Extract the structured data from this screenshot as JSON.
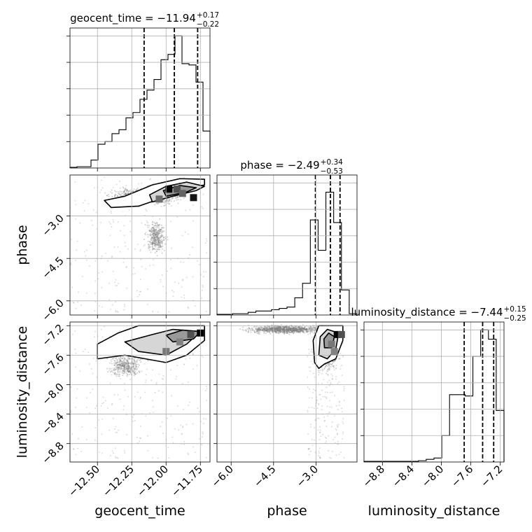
{
  "chart_data": {
    "type": "corner",
    "parameters": [
      {
        "key": "geocent_time",
        "label": "geocent_time",
        "title": "geocent_time = −11.94",
        "title_plus": "+0.17",
        "title_minus": "−0.22",
        "range": [
          -12.7,
          -11.68
        ],
        "ticks": [
          -12.5,
          -12.25,
          -12.0,
          -11.75
        ],
        "tick_labels": [
          "−12.50",
          "−12.25",
          "−12.00",
          "−11.75"
        ],
        "quantiles": [
          -12.16,
          -11.94,
          -11.77
        ],
        "hist": [
          0.005,
          0.01,
          0.01,
          0.06,
          0.18,
          0.2,
          0.26,
          0.29,
          0.38,
          0.42,
          0.52,
          0.59,
          0.67,
          0.82,
          0.86,
          1.0,
          0.79,
          0.78,
          0.65,
          0.28
        ]
      },
      {
        "key": "phase",
        "label": "phase",
        "title": "phase = −2.49",
        "title_plus": "+0.34",
        "title_minus": "−0.53",
        "range": [
          -6.5,
          -1.55
        ],
        "ticks": [
          -6.0,
          -4.5,
          -3.0
        ],
        "tick_labels": [
          "−6.0",
          "−4.5",
          "−3.0"
        ],
        "quantiles": [
          -3.02,
          -2.49,
          -2.15
        ],
        "hist": [
          0.005,
          0.005,
          0.01,
          0.01,
          0.02,
          0.03,
          0.03,
          0.04,
          0.05,
          0.06,
          0.13,
          0.24,
          0.72,
          0.49,
          0.93,
          0.7,
          0.19,
          0.01
        ]
      },
      {
        "key": "luminosity_distance",
        "label": "luminosity_distance",
        "title": "luminosity_distance = −7.44",
        "title_plus": "+0.15",
        "title_minus": "−0.25",
        "range": [
          -9.05,
          -7.15
        ],
        "ticks": [
          -8.8,
          -8.4,
          -8.0,
          -7.6,
          -7.2
        ],
        "tick_labels": [
          "−8.8",
          "−8.4",
          "−8.0",
          "−7.6",
          "−7.2"
        ],
        "quantiles": [
          -7.69,
          -7.44,
          -7.29
        ],
        "hist": [
          0.005,
          0.005,
          0.005,
          0.005,
          0.005,
          0.005,
          0.005,
          0.01,
          0.02,
          0.03,
          0.2,
          0.51,
          0.51,
          0.5,
          0.8,
          1.0,
          0.93,
          0.39
        ]
      }
    ],
    "pairs": [
      {
        "x": "geocent_time",
        "y": "phase",
        "y_range": [
          -6.5,
          -1.55
        ],
        "y_ticks": [
          -6.0,
          -4.5,
          -3.0
        ],
        "y_tick_labels": [
          "−6.0",
          "−4.5",
          "−3.0"
        ],
        "center": [
          -11.88,
          -2.15
        ],
        "cloud": [
          {
            "x": [
              -12.6,
              -11.7
            ],
            "y": [
              -2.8,
              -1.8
            ]
          },
          {
            "x": [
              -12.2,
              -11.95
            ],
            "y": [
              -4.8,
              -2.7
            ]
          },
          {
            "x": [
              -12.7,
              -11.7
            ],
            "y": [
              -6.4,
              -1.6
            ]
          }
        ],
        "contours": [
          [
            [
              -12.4,
              -2.7
            ],
            [
              -12.2,
              -2.65
            ],
            [
              -12.05,
              -2.4
            ],
            [
              -11.95,
              -2.05
            ],
            [
              -11.8,
              -1.98
            ],
            [
              -11.72,
              -1.9
            ],
            [
              -11.72,
              -1.7
            ],
            [
              -11.9,
              -1.68
            ],
            [
              -12.1,
              -1.9
            ],
            [
              -12.3,
              -2.3
            ],
            [
              -12.45,
              -2.45
            ]
          ],
          [
            [
              -12.1,
              -2.5
            ],
            [
              -11.95,
              -2.3
            ],
            [
              -11.78,
              -2.1
            ],
            [
              -11.72,
              -1.95
            ],
            [
              -11.85,
              -1.8
            ],
            [
              -12.0,
              -1.95
            ],
            [
              -12.12,
              -2.25
            ]
          ],
          [
            [
              -12.0,
              -2.3
            ],
            [
              -11.85,
              -2.15
            ],
            [
              -11.78,
              -2.0
            ],
            [
              -11.9,
              -1.92
            ],
            [
              -12.02,
              -2.1
            ]
          ]
        ],
        "dense_bins": [
          [
            -11.98,
            -2.05,
            1.0
          ],
          [
            -11.92,
            -2.05,
            0.6
          ],
          [
            -11.8,
            -2.35,
            0.9
          ],
          [
            -12.05,
            -2.4,
            0.45
          ],
          [
            -11.88,
            -2.2,
            0.5
          ]
        ]
      },
      {
        "x": "geocent_time",
        "y": "luminosity_distance",
        "y_range": [
          -9.05,
          -7.15
        ],
        "y_ticks": [
          -8.8,
          -8.4,
          -8.0,
          -7.6,
          -7.2
        ],
        "y_tick_labels": [
          "−8.8",
          "−8.4",
          "−8.0",
          "−7.6",
          "−7.2"
        ],
        "center": [
          -11.95,
          -7.45
        ],
        "cloud": [
          {
            "x": [
              -12.5,
              -11.7
            ],
            "y": [
              -7.8,
              -7.2
            ]
          },
          {
            "x": [
              -12.5,
              -12.1
            ],
            "y": [
              -8.0,
              -7.5
            ]
          },
          {
            "x": [
              -12.7,
              -11.7
            ],
            "y": [
              -9.0,
              -7.2
            ]
          }
        ],
        "contours": [
          [
            [
              -12.5,
              -7.65
            ],
            [
              -12.3,
              -7.6
            ],
            [
              -12.15,
              -7.65
            ],
            [
              -12.0,
              -7.7
            ],
            [
              -11.85,
              -7.6
            ],
            [
              -11.72,
              -7.4
            ],
            [
              -11.72,
              -7.2
            ],
            [
              -12.2,
              -7.2
            ],
            [
              -12.35,
              -7.3
            ],
            [
              -12.5,
              -7.45
            ]
          ],
          [
            [
              -12.2,
              -7.55
            ],
            [
              -12.0,
              -7.6
            ],
            [
              -11.85,
              -7.45
            ],
            [
              -11.75,
              -7.28
            ],
            [
              -11.95,
              -7.25
            ],
            [
              -12.1,
              -7.32
            ],
            [
              -12.3,
              -7.42
            ]
          ],
          [
            [
              -11.95,
              -7.42
            ],
            [
              -11.8,
              -7.38
            ],
            [
              -11.75,
              -7.28
            ],
            [
              -11.88,
              -7.26
            ],
            [
              -12.0,
              -7.33
            ]
          ]
        ],
        "dense_bins": [
          [
            -11.75,
            -7.3,
            1.0
          ],
          [
            -11.82,
            -7.32,
            0.6
          ],
          [
            -12.0,
            -7.55,
            0.4
          ],
          [
            -11.9,
            -7.42,
            0.35
          ]
        ]
      },
      {
        "x": "phase",
        "y": "luminosity_distance",
        "y_range": [
          -9.05,
          -7.15
        ],
        "y_ticks": [
          -8.8,
          -8.4,
          -8.0,
          -7.6,
          -7.2
        ],
        "y_tick_labels": [
          "−8.8",
          "−8.4",
          "−8.0",
          "−7.6",
          "−7.2"
        ],
        "center": [
          -2.45,
          -7.35
        ],
        "cloud": [
          {
            "x": [
              -6.5,
              -1.6
            ],
            "y": [
              -7.35,
              -7.15
            ]
          },
          {
            "x": [
              -3.1,
              -2.0
            ],
            "y": [
              -8.0,
              -7.2
            ]
          },
          {
            "x": [
              -3.3,
              -2.0
            ],
            "y": [
              -9.0,
              -7.2
            ]
          }
        ],
        "contours": [
          [
            [
              -3.05,
              -7.7
            ],
            [
              -2.9,
              -7.78
            ],
            [
              -2.7,
              -7.72
            ],
            [
              -2.3,
              -7.65
            ],
            [
              -2.05,
              -7.4
            ],
            [
              -2.05,
              -7.2
            ],
            [
              -2.9,
              -7.2
            ],
            [
              -3.1,
              -7.4
            ]
          ],
          [
            [
              -2.9,
              -7.6
            ],
            [
              -2.6,
              -7.65
            ],
            [
              -2.3,
              -7.52
            ],
            [
              -2.2,
              -7.3
            ],
            [
              -2.6,
              -7.25
            ],
            [
              -2.85,
              -7.35
            ]
          ],
          [
            [
              -2.7,
              -7.5
            ],
            [
              -2.45,
              -7.5
            ],
            [
              -2.35,
              -7.35
            ],
            [
              -2.55,
              -7.3
            ],
            [
              -2.72,
              -7.38
            ]
          ]
        ],
        "dense_bins": [
          [
            -2.25,
            -7.32,
            1.0
          ],
          [
            -2.1,
            -7.32,
            0.6
          ],
          [
            -2.45,
            -7.45,
            0.4
          ],
          [
            -2.35,
            -7.55,
            0.35
          ]
        ]
      }
    ],
    "grid": true
  }
}
